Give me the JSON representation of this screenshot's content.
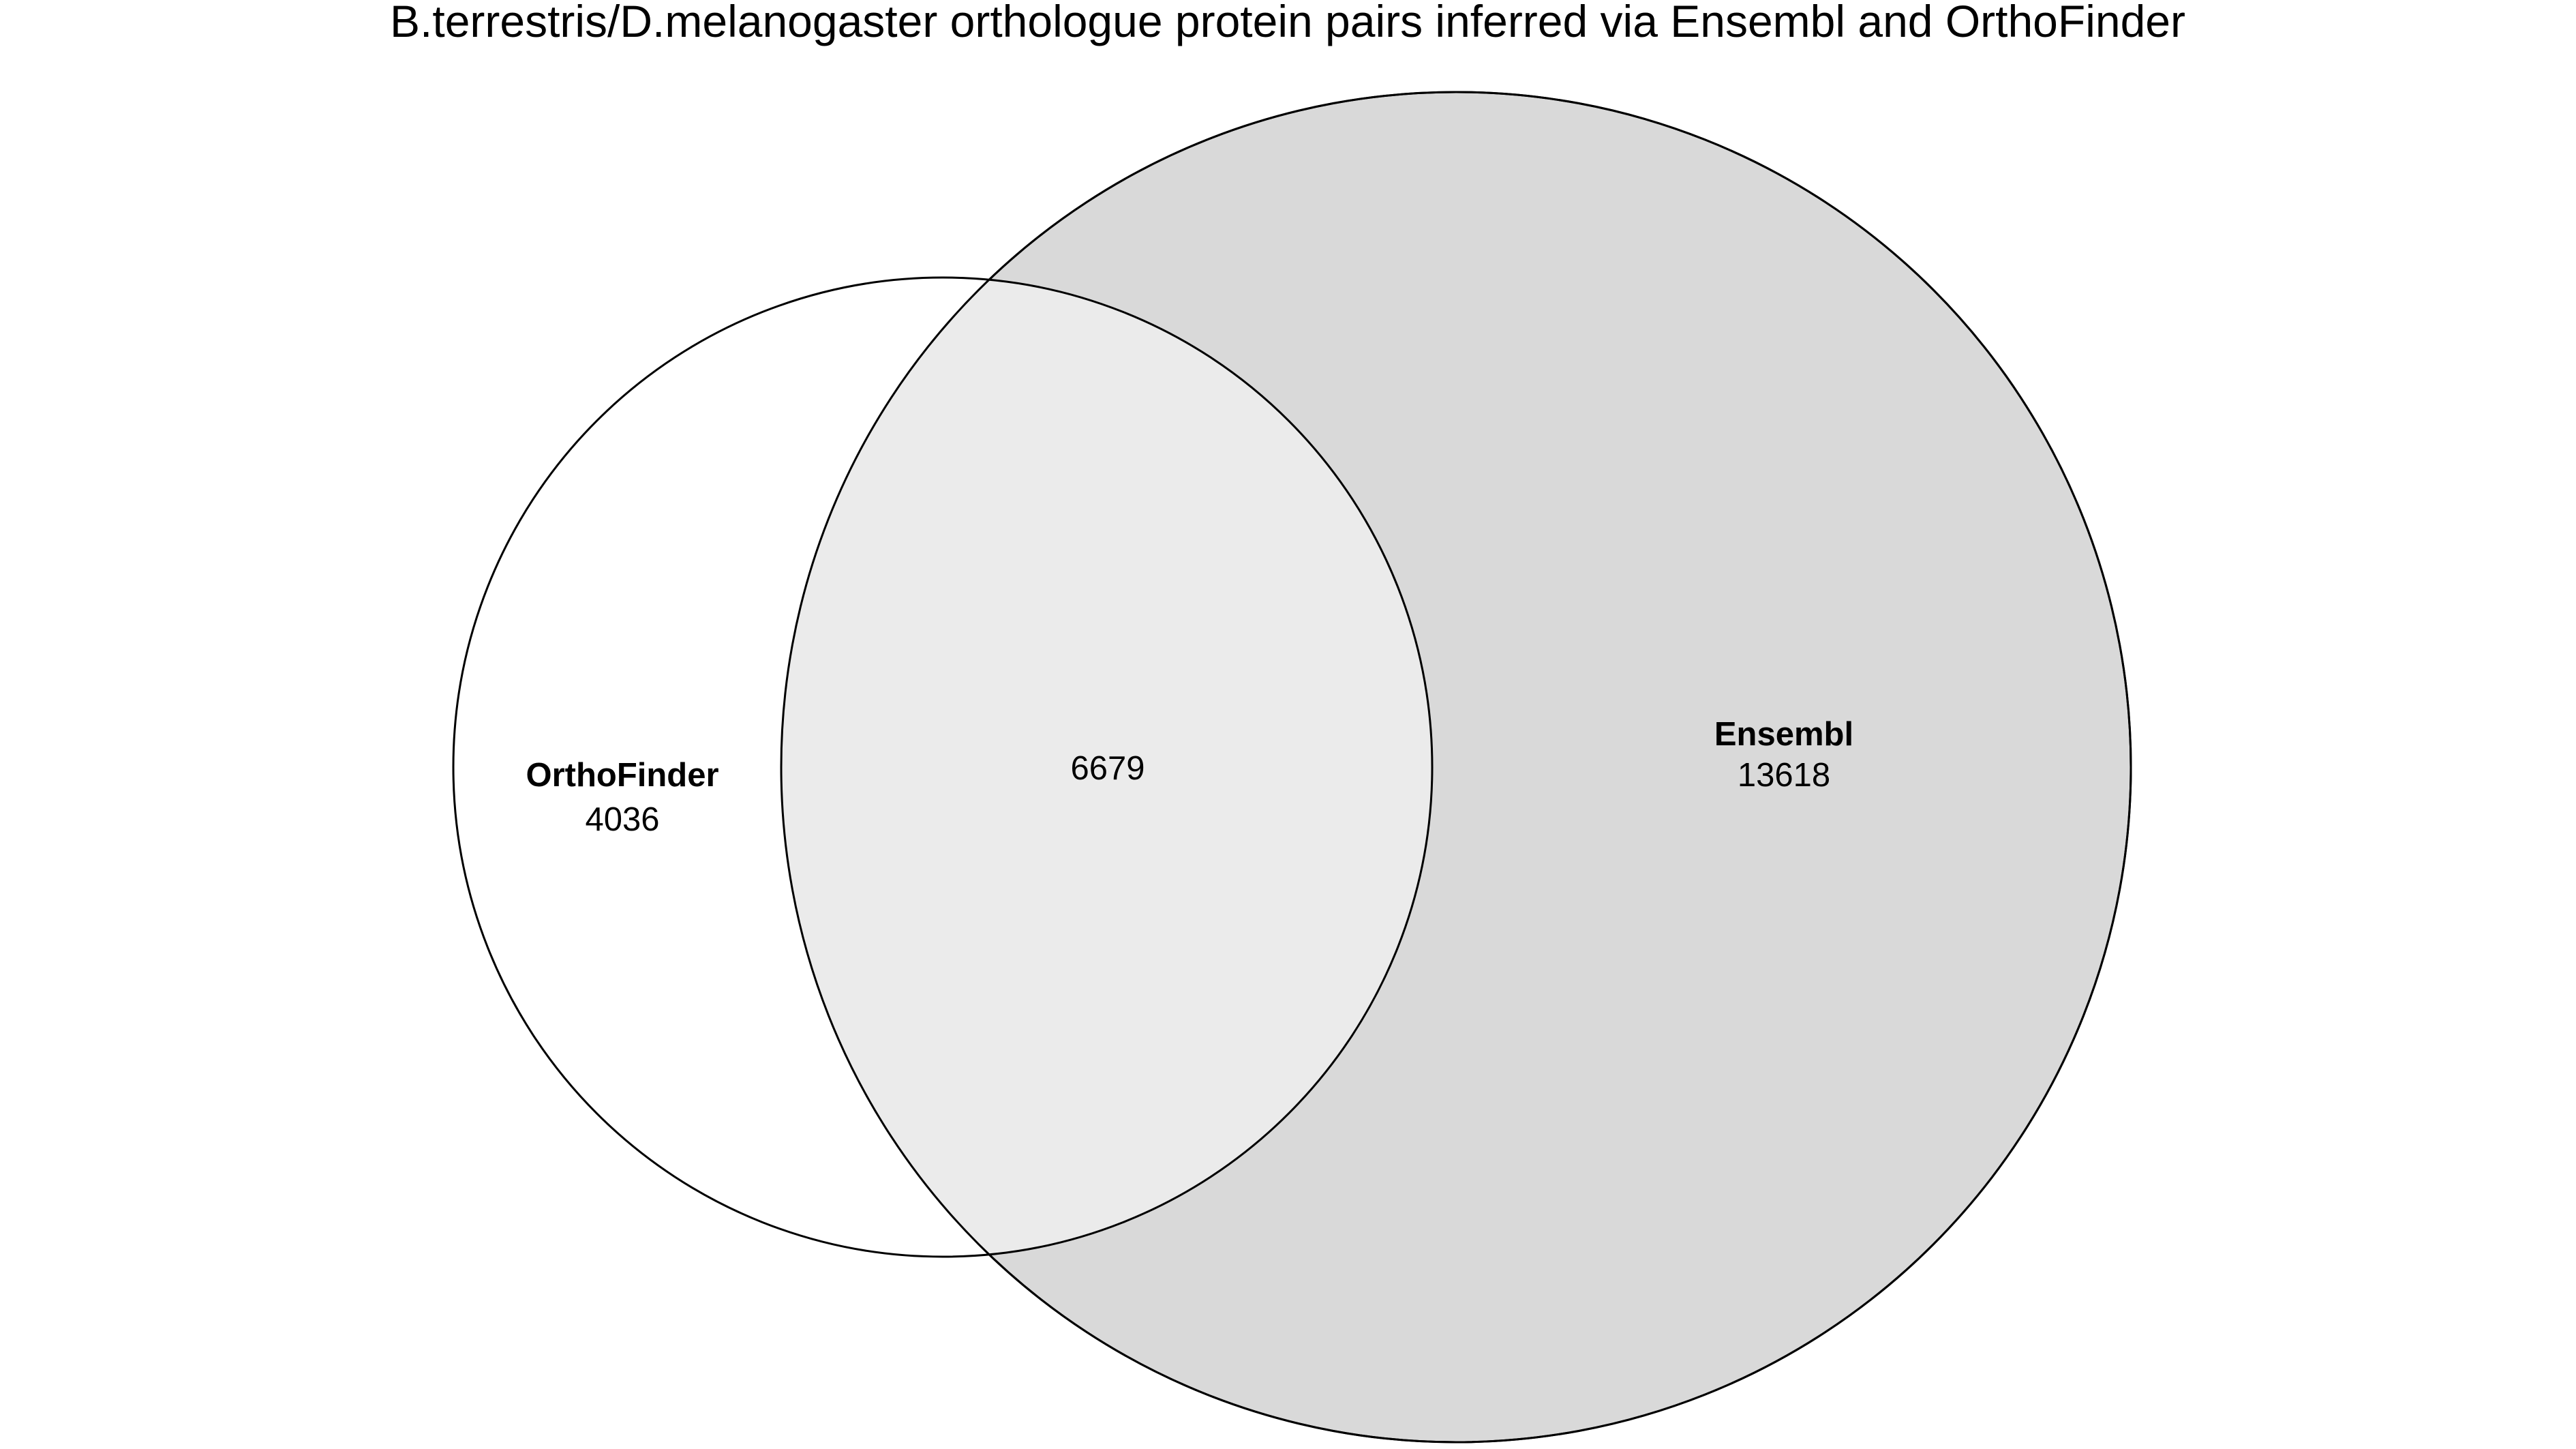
{
  "title": "B.terrestris/D.melanogaster orthologue protein pairs inferred via Ensembl and OrthoFinder",
  "sets": [
    {
      "name": "OrthoFinder",
      "only_count": "4036",
      "fill": "#ffffff"
    },
    {
      "name": "Ensembl",
      "only_count": "13618",
      "fill": "#d9d9d9"
    }
  ],
  "overlap": {
    "count": "6679",
    "fill": "#ebebeb"
  },
  "stroke_color": "#000000",
  "chart_data": {
    "type": "venn",
    "title": "B.terrestris/D.melanogaster orthologue protein pairs inferred via Ensembl and OrthoFinder",
    "sets": [
      "OrthoFinder",
      "Ensembl"
    ],
    "regions": [
      {
        "sets": [
          "OrthoFinder"
        ],
        "value": 4036
      },
      {
        "sets": [
          "OrthoFinder",
          "Ensembl"
        ],
        "value": 6679
      },
      {
        "sets": [
          "Ensembl"
        ],
        "value": 13618
      }
    ]
  }
}
